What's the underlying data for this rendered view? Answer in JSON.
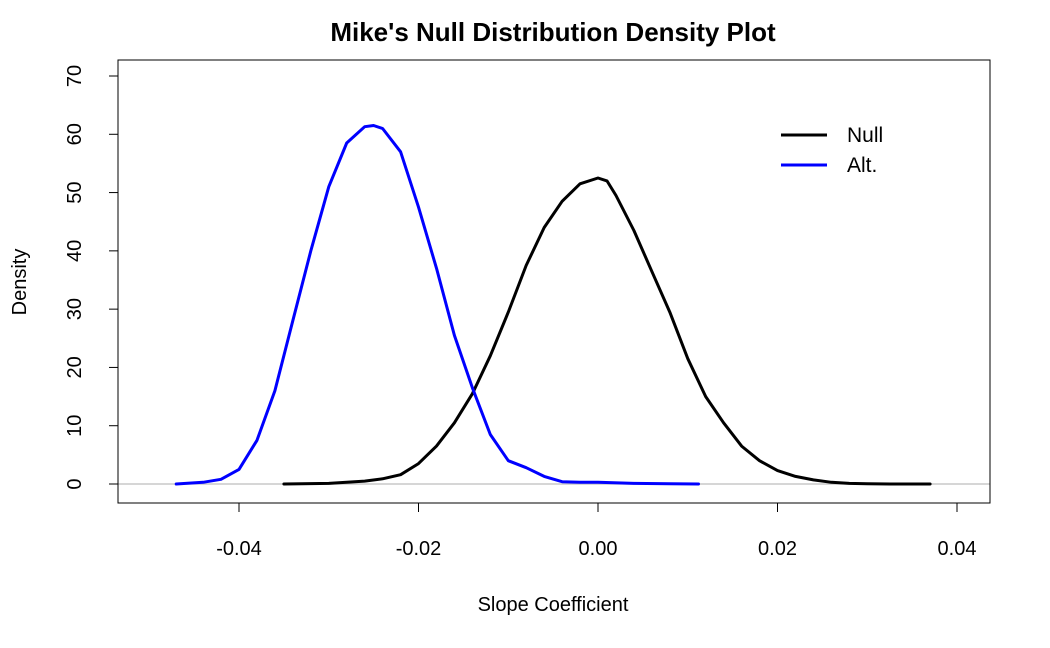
{
  "chart_data": {
    "type": "line",
    "title": "Mike's Null Distribution Density Plot",
    "xlabel": "Slope Coefficient",
    "ylabel": "Density",
    "xlim": [
      -0.05,
      0.04
    ],
    "ylim": [
      0,
      70
    ],
    "x_ticks": [
      -0.04,
      -0.02,
      0.0,
      0.02,
      0.04
    ],
    "x_tick_labels": [
      "-0.04",
      "-0.02",
      "0.00",
      "0.02",
      "0.04"
    ],
    "y_ticks": [
      0,
      10,
      20,
      30,
      40,
      50,
      60,
      70
    ],
    "y_tick_labels": [
      "0",
      "10",
      "20",
      "30",
      "40",
      "50",
      "60",
      "70"
    ],
    "grid": false,
    "baseline": {
      "y": 0,
      "color": "#bebebe"
    },
    "legend": {
      "position": "top-right",
      "entries": [
        {
          "label": "Null",
          "color": "#000000"
        },
        {
          "label": "Alt.",
          "color": "#0000ff"
        }
      ]
    },
    "series": [
      {
        "name": "Null",
        "color": "#000000",
        "x": [
          -0.035,
          -0.03,
          -0.028,
          -0.026,
          -0.024,
          -0.022,
          -0.02,
          -0.018,
          -0.016,
          -0.014,
          -0.012,
          -0.01,
          -0.008,
          -0.006,
          -0.004,
          -0.002,
          0.0,
          0.001,
          0.002,
          0.004,
          0.006,
          0.008,
          0.01,
          0.012,
          0.014,
          0.016,
          0.018,
          0.02,
          0.022,
          0.024,
          0.026,
          0.028,
          0.03,
          0.033,
          0.037
        ],
        "y": [
          0,
          0.1,
          0.3,
          0.5,
          0.9,
          1.6,
          3.5,
          6.5,
          10.5,
          15.5,
          22,
          29.5,
          37.5,
          44,
          48.5,
          51.5,
          52.5,
          52,
          49.5,
          43.5,
          36.5,
          29.5,
          21.5,
          15,
          10.5,
          6.5,
          4,
          2.3,
          1.3,
          0.7,
          0.3,
          0.1,
          0.05,
          0,
          0
        ]
      },
      {
        "name": "Alt.",
        "color": "#0000ff",
        "x": [
          -0.047,
          -0.044,
          -0.042,
          -0.04,
          -0.038,
          -0.036,
          -0.034,
          -0.032,
          -0.03,
          -0.028,
          -0.026,
          -0.025,
          -0.024,
          -0.022,
          -0.02,
          -0.018,
          -0.016,
          -0.014,
          -0.012,
          -0.01,
          -0.008,
          -0.006,
          -0.004,
          -0.002,
          0.0,
          0.004,
          0.008,
          0.0112
        ],
        "y": [
          0,
          0.3,
          0.8,
          2.5,
          7.5,
          16,
          28,
          40,
          51,
          58.5,
          61.3,
          61.5,
          61,
          57,
          47.5,
          37,
          25.5,
          16.5,
          8.5,
          4,
          2.8,
          1.3,
          0.4,
          0.3,
          0.3,
          0.1,
          0.05,
          0
        ]
      }
    ]
  }
}
